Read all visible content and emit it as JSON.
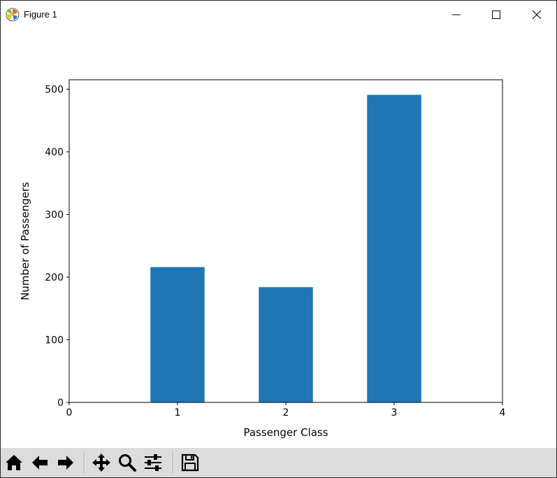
{
  "window": {
    "title": "Figure 1",
    "icons": {
      "app": "matplotlib-icon",
      "minimize": "minimize-icon",
      "maximize": "maximize-icon",
      "close": "close-icon"
    }
  },
  "toolbar": {
    "buttons": [
      {
        "name": "home-button",
        "icon": "home-icon"
      },
      {
        "name": "back-button",
        "icon": "arrow-left-icon"
      },
      {
        "name": "forward-button",
        "icon": "arrow-right-icon"
      },
      {
        "name": "pan-button",
        "icon": "move-icon"
      },
      {
        "name": "zoom-button",
        "icon": "magnifier-icon"
      },
      {
        "name": "configure-subplots-button",
        "icon": "sliders-icon"
      },
      {
        "name": "save-button",
        "icon": "floppy-disk-icon"
      }
    ]
  },
  "chart_data": {
    "type": "bar",
    "x": [
      1,
      2,
      3
    ],
    "values": [
      216,
      184,
      491
    ],
    "bar_width": 0.5,
    "xlabel": "Passenger Class",
    "ylabel": "Number of Passengers",
    "xlim": [
      0,
      4
    ],
    "ylim": [
      0,
      515
    ],
    "xticks": [
      0,
      1,
      2,
      3,
      4
    ],
    "yticks": [
      0,
      100,
      200,
      300,
      400,
      500
    ],
    "grid": false,
    "colors": {
      "bar": "#1f77b4"
    }
  }
}
